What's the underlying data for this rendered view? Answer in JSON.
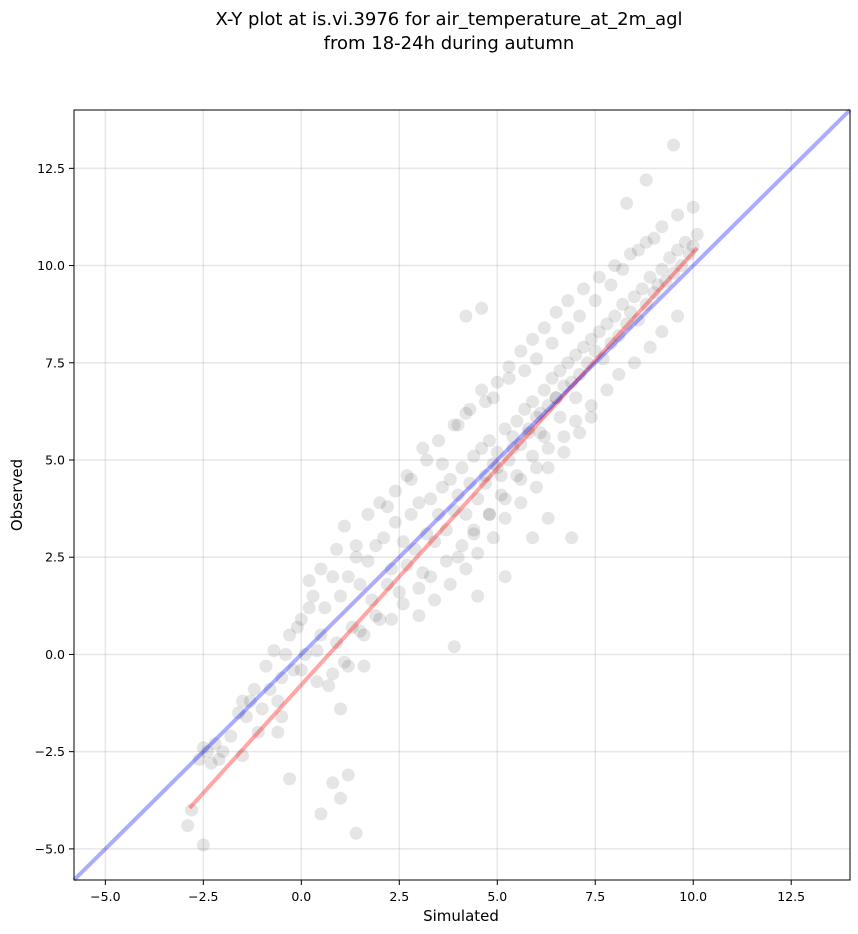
{
  "chart_data": {
    "type": "scatter",
    "title": [
      "X-Y plot at is.vi.3976 for air_temperature_at_2m_agl",
      "from 18-24h during autumn"
    ],
    "xlabel": "Simulated",
    "ylabel": "Observed",
    "xlim": [
      -5.8,
      14.0
    ],
    "ylim": [
      -5.8,
      14.0
    ],
    "xticks": [
      -5.0,
      -2.5,
      0.0,
      2.5,
      5.0,
      7.5,
      10.0,
      12.5
    ],
    "yticks": [
      -5.0,
      -2.5,
      0.0,
      2.5,
      5.0,
      7.5,
      10.0,
      12.5
    ],
    "xtick_labels": [
      "−5.0",
      "−2.5",
      "0.0",
      "2.5",
      "5.0",
      "7.5",
      "10.0",
      "12.5"
    ],
    "ytick_labels": [
      "−5.0",
      "−2.5",
      "0.0",
      "2.5",
      "5.0",
      "7.5",
      "10.0",
      "12.5"
    ],
    "grid": true,
    "point_color": "#000000",
    "point_alpha": 0.1,
    "points": {
      "x": [
        -2.9,
        -2.8,
        -2.6,
        -2.5,
        -2.5,
        -2.4,
        -2.3,
        -2.2,
        -2.1,
        -2.0,
        -1.8,
        -1.6,
        -1.5,
        -1.4,
        -1.3,
        -1.2,
        -1.1,
        -1.0,
        -0.9,
        -0.8,
        -0.7,
        -0.6,
        -0.5,
        -0.4,
        -0.3,
        -0.2,
        -0.1,
        0.0,
        0.1,
        0.2,
        0.3,
        0.4,
        0.5,
        0.6,
        0.7,
        0.8,
        0.9,
        1.0,
        1.0,
        1.1,
        1.2,
        1.3,
        1.4,
        1.5,
        1.6,
        1.7,
        1.8,
        1.9,
        2.0,
        2.1,
        2.2,
        2.3,
        2.4,
        2.5,
        2.6,
        2.7,
        2.8,
        2.9,
        3.0,
        3.1,
        3.2,
        3.3,
        3.4,
        3.5,
        3.6,
        3.7,
        3.8,
        3.9,
        4.0,
        4.1,
        4.2,
        4.3,
        4.4,
        4.5,
        4.6,
        4.7,
        4.8,
        4.9,
        5.0,
        5.1,
        5.2,
        5.3,
        5.4,
        5.5,
        5.6,
        5.7,
        5.8,
        5.9,
        6.0,
        6.1,
        6.2,
        6.3,
        6.4,
        6.5,
        6.6,
        6.7,
        6.8,
        6.9,
        7.0,
        7.1,
        7.2,
        7.3,
        7.4,
        7.5,
        7.6,
        7.7,
        7.8,
        7.9,
        8.0,
        8.1,
        8.2,
        8.3,
        8.4,
        8.5,
        8.6,
        8.7,
        8.8,
        8.9,
        9.0,
        9.1,
        9.2,
        9.3,
        9.4,
        9.5,
        9.6,
        9.7,
        9.8,
        9.9,
        10.0,
        10.1,
        0.2,
        0.5,
        0.9,
        1.1,
        1.4,
        1.7,
        2.0,
        2.4,
        2.8,
        3.1,
        3.5,
        3.9,
        4.2,
        4.6,
        4.9,
        5.3,
        5.7,
        6.0,
        6.4,
        6.8,
        7.1,
        7.5,
        7.9,
        8.2,
        8.6,
        9.0,
        3.0,
        3.4,
        3.8,
        4.2,
        4.5,
        4.9,
        5.2,
        5.6,
        6.0,
        6.3,
        6.7,
        7.1,
        7.4,
        4.0,
        4.4,
        4.8,
        5.1,
        5.5,
        5.9,
        6.2,
        6.6,
        7.0,
        4.7,
        5.0,
        5.4,
        5.8,
        6.1,
        6.5,
        1.5,
        1.9,
        2.3,
        2.6,
        3.0,
        3.3,
        3.7,
        4.1,
        4.4,
        4.8,
        5.2,
        5.6,
        6.0,
        6.3,
        6.7,
        7.0,
        7.4,
        7.8,
        8.1,
        8.5,
        8.9,
        9.2,
        9.6,
        -0.5,
        0.0,
        0.4,
        0.8,
        1.2,
        1.6,
        2.2,
        2.7,
        3.2,
        3.6,
        4.0,
        4.3,
        4.7,
        5.0,
        5.3,
        5.6,
        5.9,
        6.2,
        6.5,
        6.8,
        7.2,
        7.6,
        8.0,
        8.4,
        8.8,
        9.2,
        9.6,
        10.0,
        4.2,
        4.6,
        8.3,
        8.8,
        9.5,
        1.0,
        1.2,
        1.4,
        0.5,
        0.8,
        -0.3,
        -0.6,
        -1.5,
        6.9,
        6.3,
        5.9,
        5.2,
        4.5,
        3.9
      ],
      "y": [
        -4.4,
        -4.0,
        -2.7,
        -2.4,
        -4.9,
        -2.5,
        -2.8,
        -2.3,
        -2.7,
        -2.5,
        -2.1,
        -1.5,
        -2.6,
        -1.6,
        -1.2,
        -0.9,
        -2.0,
        -1.4,
        -0.3,
        -0.9,
        0.1,
        -1.2,
        -0.6,
        0.0,
        0.5,
        -0.4,
        0.7,
        0.9,
        0.0,
        1.2,
        1.5,
        -0.7,
        0.5,
        1.2,
        -0.8,
        2.0,
        0.3,
        1.5,
        -1.4,
        -0.2,
        2.0,
        0.7,
        2.5,
        1.8,
        -0.3,
        2.4,
        1.4,
        2.8,
        0.9,
        3.0,
        1.8,
        2.2,
        3.4,
        1.6,
        2.9,
        2.3,
        3.6,
        2.7,
        3.9,
        2.1,
        3.1,
        4.0,
        2.9,
        3.6,
        4.3,
        3.2,
        4.5,
        3.7,
        4.1,
        4.8,
        3.6,
        4.4,
        5.1,
        4.0,
        5.3,
        4.6,
        5.5,
        4.9,
        5.2,
        4.6,
        5.8,
        5.0,
        5.6,
        6.0,
        5.4,
        6.3,
        5.8,
        6.5,
        6.1,
        5.7,
        6.8,
        6.4,
        7.1,
        6.6,
        7.3,
        6.9,
        7.5,
        7.0,
        7.7,
        7.2,
        7.9,
        7.5,
        8.1,
        7.8,
        8.3,
        7.6,
        8.5,
        8.0,
        8.7,
        8.2,
        9.0,
        8.5,
        8.8,
        9.2,
        8.6,
        9.4,
        9.0,
        9.7,
        9.3,
        9.5,
        9.9,
        9.6,
        10.2,
        9.8,
        10.4,
        10.0,
        10.6,
        10.3,
        10.5,
        10.8,
        1.9,
        2.2,
        2.7,
        3.3,
        2.8,
        3.6,
        3.9,
        4.2,
        4.5,
        5.3,
        5.5,
        5.9,
        6.2,
        6.8,
        6.6,
        7.1,
        7.3,
        7.6,
        8.0,
        8.4,
        8.7,
        9.1,
        9.5,
        9.9,
        10.4,
        10.7,
        1.0,
        1.4,
        1.8,
        2.2,
        2.6,
        3.0,
        3.5,
        3.9,
        4.3,
        4.8,
        5.2,
        5.7,
        6.1,
        2.5,
        3.1,
        3.6,
        4.1,
        4.6,
        5.1,
        5.6,
        6.1,
        6.6,
        4.4,
        4.8,
        5.3,
        5.7,
        6.2,
        6.6,
        0.6,
        1.0,
        0.9,
        1.3,
        1.7,
        2.0,
        2.4,
        2.8,
        3.2,
        3.6,
        4.0,
        4.5,
        4.8,
        5.3,
        5.6,
        6.0,
        6.4,
        6.8,
        7.2,
        7.5,
        7.9,
        8.3,
        8.7,
        -1.6,
        -0.4,
        0.1,
        -0.5,
        -0.3,
        0.5,
        3.8,
        4.6,
        5.0,
        4.9,
        5.9,
        6.3,
        6.5,
        7.0,
        7.4,
        7.8,
        8.1,
        8.4,
        8.8,
        9.1,
        9.4,
        9.7,
        10.0,
        10.3,
        10.6,
        11.0,
        11.3,
        11.5,
        8.7,
        8.9,
        11.6,
        12.2,
        13.1,
        -3.7,
        -3.1,
        -4.6,
        -4.1,
        -3.3,
        -3.2,
        -2.0,
        -1.2,
        3.0,
        3.5,
        3.0,
        2.0,
        1.5,
        0.2
      ]
    },
    "lines": [
      {
        "role": "fit",
        "color": "#ff0000",
        "alpha": 0.35,
        "x": [
          -2.85,
          10.1
        ],
        "y": [
          -3.95,
          10.45
        ]
      },
      {
        "role": "identity",
        "color": "#0000ff",
        "alpha": 0.33,
        "x": [
          -5.8,
          14.0
        ],
        "y": [
          -5.8,
          14.0
        ]
      }
    ]
  }
}
